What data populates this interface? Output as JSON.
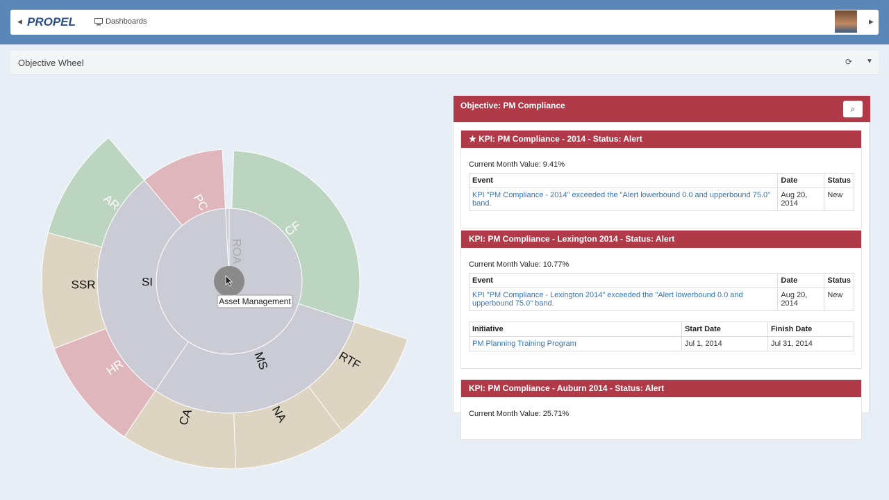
{
  "nav": {
    "logo": "PROPEL",
    "menu": "Dashboards"
  },
  "panel": {
    "title": "Objective Wheel"
  },
  "wheel": {
    "segments": [
      "CF",
      "MS",
      "SI",
      "PC",
      "RTF",
      "NA",
      "CA",
      "HR",
      "SSR",
      "AR",
      "ROA"
    ],
    "tooltip": "Asset Management"
  },
  "objective": {
    "title": "Objective: PM Compliance",
    "kpis": [
      {
        "title": "KPI: PM Compliance - 2014 - Status: Alert",
        "current": "Current Month Value: 9.41%",
        "events": {
          "headers": [
            "Event",
            "Date",
            "Status"
          ],
          "rows": [
            [
              "KPI \"PM Compliance - 2014\" exceeded the \"Alert lowerbound 0.0 and upperbound 75.0\" band.",
              "Aug 20, 2014",
              "New"
            ]
          ]
        }
      },
      {
        "title": "KPI: PM Compliance - Lexington 2014 - Status: Alert",
        "current": "Current Month Value: 10.77%",
        "events": {
          "headers": [
            "Event",
            "Date",
            "Status"
          ],
          "rows": [
            [
              "KPI \"PM Compliance - Lexington 2014\" exceeded the \"Alert lowerbound 0.0 and upperbound 75.0\" band.",
              "Aug 20, 2014",
              "New"
            ]
          ]
        },
        "initiatives": {
          "headers": [
            "Initiative",
            "Start Date",
            "Finish Date"
          ],
          "rows": [
            [
              "PM Planning Training Program",
              "Jul 1, 2014",
              "Jul 31, 2014"
            ]
          ]
        }
      },
      {
        "title": "KPI: PM Compliance - Auburn 2014 - Status: Alert",
        "current": "Current Month Value: 25.71%"
      }
    ]
  }
}
